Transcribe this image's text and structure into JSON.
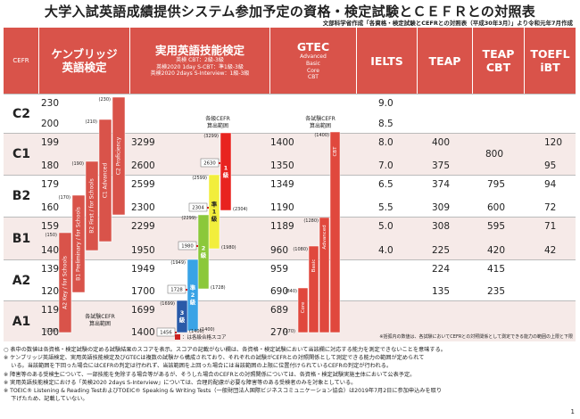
{
  "title": "大学入試英語成績提供システム参加予定の資格・検定試験とＣＥＦＲとの対照表",
  "subtitle": "文部科学省作成「各資格・検定試験とCEFRとの対照表（平成30年3月）」より令和元年7月作成",
  "headers": {
    "cefr": "CEFR",
    "cambridge": [
      "ケンブリッジ",
      "英語検定"
    ],
    "eiken": {
      "title": "実用英語技能検定",
      "lines": [
        "英検 CBT：2級-3級",
        "英検2020 1day S-CBT：準1級-3級",
        "英検2020 2days S-Interview：1級-3級"
      ]
    },
    "gtec": {
      "title": "GTEC",
      "lines": [
        "Advanced",
        "Basic",
        "Core",
        "CBT"
      ]
    },
    "ielts": "IELTS",
    "teap": "TEAP",
    "teap_cbt": [
      "TEAP",
      "CBT"
    ],
    "toefl": [
      "TOEFL",
      "iBT"
    ]
  },
  "rows": [
    {
      "level": "C2",
      "cambridge": [
        "230",
        "200"
      ],
      "eiken": [
        "",
        ""
      ],
      "gtec": [
        "",
        ""
      ],
      "ielts": [
        "9.0",
        "8.5"
      ],
      "teap": [
        "",
        ""
      ],
      "teap_cbt": "",
      "toefl": [
        "",
        ""
      ]
    },
    {
      "level": "C1",
      "cambridge": [
        "199",
        "180"
      ],
      "eiken": [
        "3299",
        "2600"
      ],
      "gtec": [
        "1400",
        "1350"
      ],
      "ielts": [
        "8.0",
        "7.0"
      ],
      "teap": [
        "400",
        "375"
      ],
      "teap_cbt": "800",
      "toefl": [
        "120",
        "95"
      ]
    },
    {
      "level": "B2",
      "cambridge": [
        "179",
        "160"
      ],
      "eiken": [
        "2599",
        "2300"
      ],
      "gtec": [
        "1349",
        "1190"
      ],
      "ielts": [
        "6.5",
        "5.5"
      ],
      "teap": [
        "374",
        "309"
      ],
      "teap_cbt": "795|600",
      "toefl": [
        "94",
        "72"
      ]
    },
    {
      "level": "B1",
      "cambridge": [
        "159",
        "140"
      ],
      "eiken": [
        "2299",
        "1950"
      ],
      "gtec": [
        "1189",
        "960"
      ],
      "ielts": [
        "5.0",
        "4.0"
      ],
      "teap": [
        "308",
        "225"
      ],
      "teap_cbt": "595|420",
      "toefl": [
        "71",
        "42"
      ]
    },
    {
      "level": "A2",
      "cambridge": [
        "139",
        "120"
      ],
      "eiken": [
        "1949",
        "1700"
      ],
      "gtec": [
        "959",
        "690"
      ],
      "ielts": [
        "",
        ""
      ],
      "teap": [
        "224",
        "135"
      ],
      "teap_cbt": "415|235",
      "toefl": [
        "",
        ""
      ]
    },
    {
      "level": "A1",
      "cambridge": [
        "119",
        "100"
      ],
      "eiken": [
        "1699",
        "1400"
      ],
      "gtec": [
        "689",
        "270"
      ],
      "ielts": [
        "",
        ""
      ],
      "teap": [
        "",
        ""
      ],
      "teap_cbt": "",
      "toefl": [
        "",
        ""
      ]
    }
  ],
  "cambridge_bars": [
    {
      "label": "C2 Proficiency",
      "top": "(230)",
      "bottom": "(180)"
    },
    {
      "label": "C1 Advanced",
      "top": "(210)",
      "bottom": "(160)"
    },
    {
      "label": "B2 First / for Schools",
      "top": "(190)",
      "bottom": "(160)"
    },
    {
      "label": "B1 Preliminary / for Schools",
      "top": "(170)",
      "bottom": "(140)"
    },
    {
      "label": "A2 Key / for Schools",
      "top": "(150)",
      "bottom": "(120)"
    }
  ],
  "cambridge_note": [
    "各試験CEFR",
    "算出範囲"
  ],
  "eiken_bars": [
    {
      "label": "1級",
      "top": "(3299)",
      "pass": "2630",
      "bottom": "(2304)"
    },
    {
      "label": "準1級",
      "top": "(2599)",
      "pass": "2304",
      "bottom": "(1980)"
    },
    {
      "label": "2級",
      "top": "(2299)",
      "pass": "1980",
      "bottom": "(1728)"
    },
    {
      "label": "準2級",
      "top": "(1949)",
      "pass": "1728",
      "bottom": "(1400)"
    },
    {
      "label": "3級",
      "top": "(1699)",
      "pass": "1456",
      "bottom": "(1400)"
    }
  ],
  "eiken_note": [
    "各級CEFR",
    "算出範囲"
  ],
  "gtec_bars": [
    {
      "label": "CBT",
      "top": "(1400)"
    },
    {
      "label": "Advanced",
      "top": "(1280)"
    },
    {
      "label": "Basic",
      "top": "(1080)"
    },
    {
      "label": "Core",
      "top": "(840)"
    }
  ],
  "gtec_note": [
    "各試験CEFR",
    "算出範囲"
  ],
  "gtec_bottom": "(270)",
  "legend": "：は各級合格スコア",
  "footnote": "※括弧内の数値は、各試験においてCEFRとの対照関係として測定できる能力の範囲の上限と下限",
  "notes": [
    "○ 表中の数値は各資格・検定試験の定める試験結果のスコアを表示。スコアの記載がない欄は、各資格・検定試験において当該欄に対応する能力を測定できないことを意味する。",
    "※ ケンブリッジ英語検定、実用英語技能検定及びGTECは複数の試験から構成されており、それぞれの試験がCEFRとの対照関係として測定できる能力の範囲が定められて",
    "　 いる。当該範囲を下回った場合にはCEFRの判定は行われず、当該範囲を上回った場合には当該範囲の上限に位置付けられているCEFRの判定が行われる。",
    "※ 障害等のある受検生について、一部技能を免除する場合等があるが、そうした場合のCEFRとの対照関係については、各資格・検定試験実施主体において公表予定。",
    "※ 実用英語技能検定における「英検2020 2days S-Interview」については、合理的配慮が必要な障害等のある受検者のみを対象としている。",
    "※ TOEIC® Listening & Reading TestおよびTOEIC® Speaking & Writing Tests（一般財団法人国際ビジネスコミュニケーション協会）は2019年7月2日に参加申込みを取り",
    "　 下げたため、記載していない。"
  ],
  "page_number": "1",
  "colors": {
    "header": "#d9534a",
    "cambridge": "#d9534a",
    "eiken1": "#e8231f",
    "eikenp1": "#f2ee3c",
    "eiken2": "#8bc83a",
    "eikenp2": "#39a3e6",
    "eiken3": "#2a5aa8",
    "gtec": "#e0483d"
  }
}
